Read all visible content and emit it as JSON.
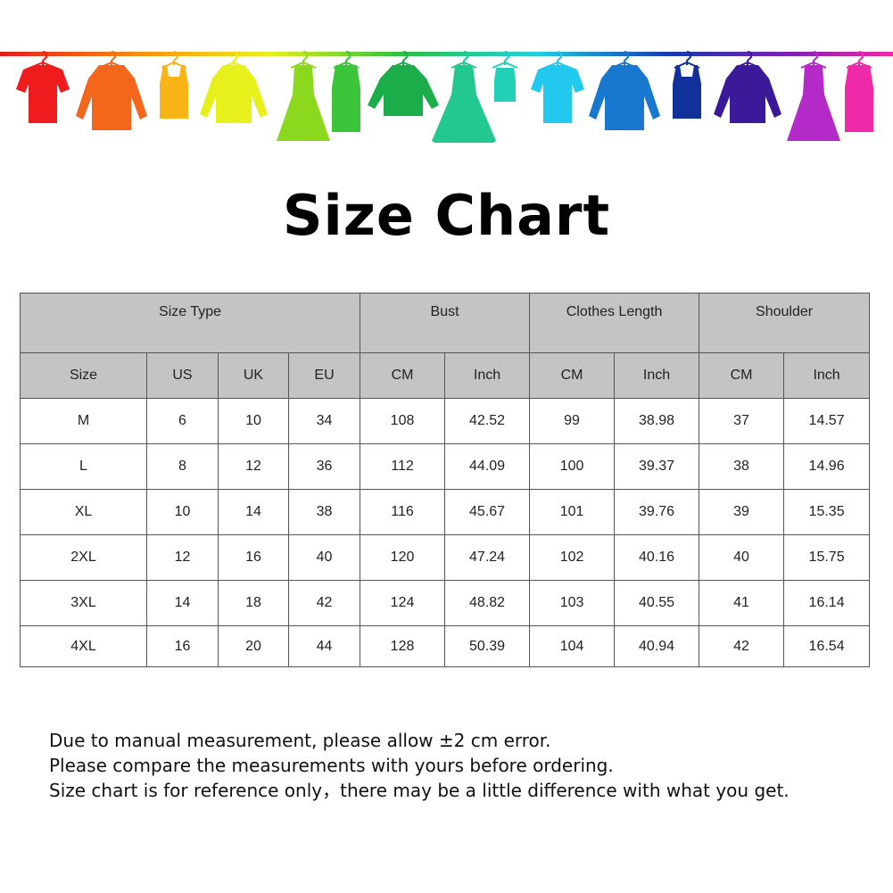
{
  "banner": {
    "garments": [
      {
        "icon": "tshirt-icon",
        "color": "#ee1c1c"
      },
      {
        "icon": "jacket-icon",
        "color": "#f4661b"
      },
      {
        "icon": "tank-top-icon",
        "color": "#f8b417"
      },
      {
        "icon": "cardigan-icon",
        "color": "#e8f01c"
      },
      {
        "icon": "dress-icon",
        "color": "#8cd81e"
      },
      {
        "icon": "belted-dress-icon",
        "color": "#3cc43a"
      },
      {
        "icon": "sweater-icon",
        "color": "#1aad4a"
      },
      {
        "icon": "flared-dress-icon",
        "color": "#22c890"
      },
      {
        "icon": "camisole-icon",
        "color": "#22d0b8"
      },
      {
        "icon": "tshirt-icon",
        "color": "#22c8ee"
      },
      {
        "icon": "jacket-icon",
        "color": "#1878d0"
      },
      {
        "icon": "tank-top-icon",
        "color": "#12309a"
      },
      {
        "icon": "cardigan-icon",
        "color": "#3a1a98"
      },
      {
        "icon": "dress-icon",
        "color": "#b42ac8"
      },
      {
        "icon": "belted-dress-icon",
        "color": "#ee2aa8"
      }
    ]
  },
  "title": "Size Chart",
  "table": {
    "group_headers": [
      "Size Type",
      "Bust",
      "Clothes Length",
      "Shoulder"
    ],
    "sub_headers": [
      "Size",
      "US",
      "UK",
      "EU",
      "CM",
      "Inch",
      "CM",
      "Inch",
      "CM",
      "Inch"
    ],
    "rows": [
      [
        "M",
        "6",
        "10",
        "34",
        "108",
        "42.52",
        "99",
        "38.98",
        "37",
        "14.57"
      ],
      [
        "L",
        "8",
        "12",
        "36",
        "112",
        "44.09",
        "100",
        "39.37",
        "38",
        "14.96"
      ],
      [
        "XL",
        "10",
        "14",
        "38",
        "116",
        "45.67",
        "101",
        "39.76",
        "39",
        "15.35"
      ],
      [
        "2XL",
        "12",
        "16",
        "40",
        "120",
        "47.24",
        "102",
        "40.16",
        "40",
        "15.75"
      ],
      [
        "3XL",
        "14",
        "18",
        "42",
        "124",
        "48.82",
        "103",
        "40.55",
        "41",
        "16.14"
      ],
      [
        "4XL",
        "16",
        "20",
        "44",
        "128",
        "50.39",
        "104",
        "40.94",
        "42",
        "16.54"
      ]
    ]
  },
  "notes": [
    "Due to manual measurement, please allow ±2 cm error.",
    "Please compare the measurements with yours before ordering.",
    "Size chart is for reference only，there may be a little difference with what you get."
  ]
}
